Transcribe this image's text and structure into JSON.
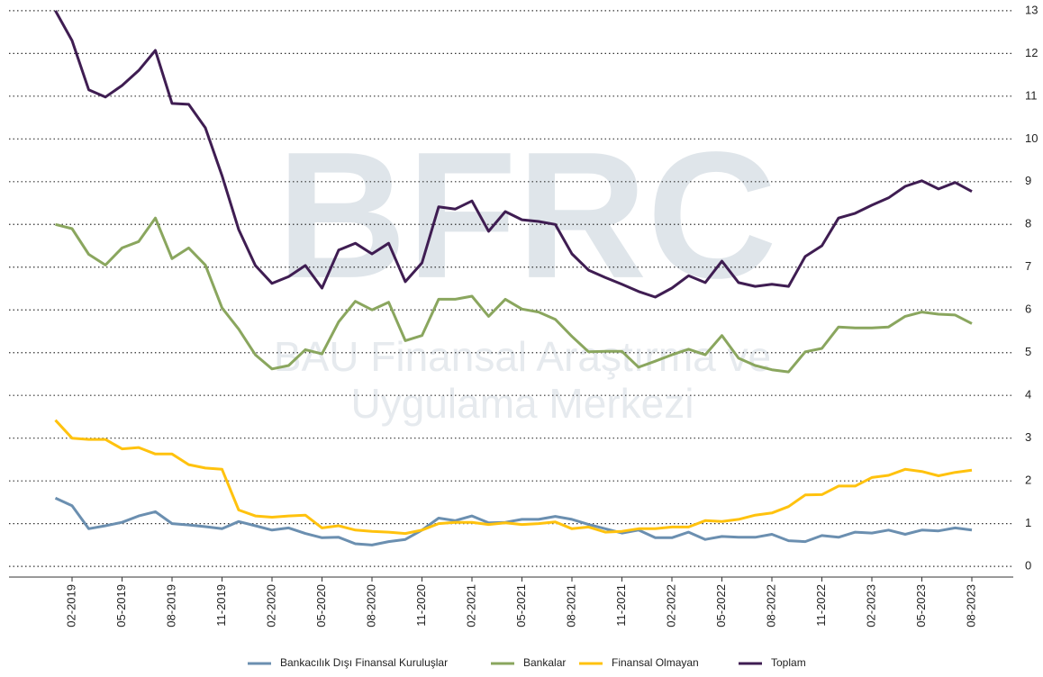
{
  "chart_data": {
    "type": "line",
    "watermark": [
      "BFRC",
      "BAU Finansal Araştırma ve",
      "Uygulama Merkezi"
    ],
    "categories": [
      null,
      "02-2019",
      null,
      null,
      "05-2019",
      null,
      null,
      "08-2019",
      null,
      null,
      "11-2019",
      null,
      null,
      "02-2020",
      null,
      null,
      "05-2020",
      null,
      null,
      "08-2020",
      null,
      null,
      "11-2020",
      null,
      null,
      "02-2021",
      null,
      null,
      "05-2021",
      null,
      null,
      "08-2021",
      null,
      null,
      "11-2021",
      null,
      null,
      "02-2022",
      null,
      null,
      "05-2022",
      null,
      null,
      "08-2022",
      null,
      null,
      "11-2022",
      null,
      null,
      "02-2023",
      null,
      null,
      "05-2023",
      null,
      null,
      "08-2023"
    ],
    "series": [
      {
        "name": "Bankacılık Dışı Finansal Kuruluşlar",
        "color": "#6b8fb0",
        "values": [
          1.6,
          1.42,
          0.88,
          0.95,
          1.03,
          1.18,
          1.28,
          1.0,
          0.97,
          0.93,
          0.88,
          1.05,
          0.95,
          0.85,
          0.9,
          0.77,
          0.67,
          0.68,
          0.53,
          0.5,
          0.58,
          0.63,
          0.85,
          1.13,
          1.07,
          1.18,
          1.02,
          1.03,
          1.1,
          1.1,
          1.17,
          1.1,
          0.98,
          0.88,
          0.78,
          0.85,
          0.67,
          0.67,
          0.8,
          0.63,
          0.7,
          0.68,
          0.68,
          0.75,
          0.6,
          0.58,
          0.72,
          0.68,
          0.8,
          0.78,
          0.85,
          0.75,
          0.85,
          0.83,
          0.9,
          0.85
        ]
      },
      {
        "name": "Bankalar",
        "color": "#8aa65e",
        "values": [
          8.0,
          7.9,
          7.3,
          7.05,
          7.45,
          7.6,
          8.15,
          7.2,
          7.45,
          7.05,
          6.05,
          5.55,
          4.95,
          4.62,
          4.7,
          5.07,
          4.97,
          5.72,
          6.2,
          6.0,
          6.18,
          5.28,
          5.4,
          6.25,
          6.25,
          6.32,
          5.85,
          6.25,
          6.02,
          5.95,
          5.78,
          5.38,
          5.02,
          5.03,
          5.03,
          4.66,
          4.8,
          4.95,
          5.08,
          4.95,
          5.4,
          4.87,
          4.7,
          4.6,
          4.55,
          5.02,
          5.1,
          5.6,
          5.58,
          5.58,
          5.6,
          5.85,
          5.95,
          5.9,
          5.88,
          5.68
        ]
      },
      {
        "name": "Finansal Olmayan",
        "color": "#ffc20e",
        "values": [
          3.42,
          3.0,
          2.97,
          2.97,
          2.75,
          2.78,
          2.63,
          2.63,
          2.38,
          2.3,
          2.27,
          1.32,
          1.18,
          1.15,
          1.18,
          1.2,
          0.9,
          0.95,
          0.85,
          0.82,
          0.8,
          0.77,
          0.85,
          1.0,
          1.03,
          1.03,
          0.98,
          1.02,
          0.98,
          1.0,
          1.04,
          0.88,
          0.92,
          0.8,
          0.82,
          0.88,
          0.88,
          0.92,
          0.92,
          1.07,
          1.05,
          1.1,
          1.2,
          1.25,
          1.4,
          1.67,
          1.68,
          1.88,
          1.88,
          2.08,
          2.13,
          2.27,
          2.22,
          2.12,
          2.2,
          2.25
        ]
      },
      {
        "name": "Toplam",
        "color": "#3f1d52",
        "values": [
          13.0,
          12.3,
          11.15,
          10.98,
          11.25,
          11.6,
          12.07,
          10.83,
          10.81,
          10.26,
          9.14,
          7.88,
          7.04,
          6.62,
          6.78,
          7.04,
          6.51,
          7.4,
          7.56,
          7.31,
          7.56,
          6.66,
          7.1,
          8.41,
          8.36,
          8.55,
          7.84,
          8.3,
          8.11,
          8.07,
          8.0,
          7.31,
          6.93,
          6.76,
          6.6,
          6.43,
          6.3,
          6.51,
          6.8,
          6.64,
          7.14,
          6.64,
          6.55,
          6.6,
          6.55,
          7.25,
          7.5,
          8.15,
          8.26,
          8.45,
          8.62,
          8.89,
          9.02,
          8.83,
          8.98,
          8.77
        ]
      }
    ],
    "ylim": [
      -0.25,
      13.25
    ],
    "yticks": [
      0,
      1,
      2,
      3,
      4,
      5,
      6,
      7,
      8,
      9,
      10,
      11,
      12,
      13
    ],
    "grid": true,
    "legend": "bottom"
  }
}
